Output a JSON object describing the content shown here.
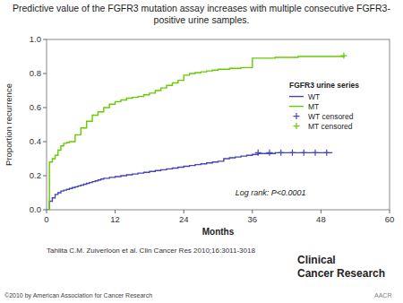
{
  "chart_data": {
    "type": "line",
    "title": "Predictive value of the FGFR3 mutation assay increases with multiple consecutive FGFR3-positive urine samples.",
    "x_label": "Months",
    "y_label": "Proportion recurrence",
    "xlim": [
      0,
      60
    ],
    "ylim": [
      0.0,
      1.0
    ],
    "xticks": [
      0,
      12,
      24,
      36,
      48,
      60
    ],
    "yticks": [
      {
        "value": 0.0,
        "label": "0.0"
      },
      0.2,
      0.4,
      0.6,
      0.8,
      {
        "value": 1.0,
        "label": "1.0"
      }
    ],
    "legend": "right",
    "legend_title": "FGFR3 urine series",
    "annotations": [
      "Log rank: P<0.0001",
      "Tahlita C.M. Zuiverloon et al. Clin Cancer Res 2010;16:3011-3018",
      "©2010 by American Association for Cancer Research",
      "Clinical",
      "Cancer Research",
      "AACR"
    ],
    "series": [
      {
        "name": "WT",
        "type": "step",
        "color": "#4444bb",
        "x": [
          0,
          0.5,
          1,
          1.5,
          2,
          2.5,
          3,
          3.5,
          4,
          4.5,
          5,
          5.5,
          6,
          6.5,
          7,
          7.5,
          8,
          8.5,
          9,
          9.5,
          10,
          11,
          12,
          13,
          14,
          15,
          16,
          17,
          18,
          19,
          20,
          21,
          22,
          23,
          24,
          25,
          26,
          27,
          28,
          29,
          30,
          31,
          32,
          33,
          34,
          35,
          36,
          37,
          38,
          40,
          42,
          44,
          46,
          48,
          50
        ],
        "values": [
          0.0,
          0.05,
          0.07,
          0.09,
          0.1,
          0.11,
          0.115,
          0.12,
          0.125,
          0.13,
          0.135,
          0.14,
          0.145,
          0.15,
          0.155,
          0.16,
          0.165,
          0.17,
          0.175,
          0.18,
          0.185,
          0.19,
          0.195,
          0.2,
          0.205,
          0.21,
          0.215,
          0.22,
          0.225,
          0.23,
          0.235,
          0.24,
          0.245,
          0.25,
          0.255,
          0.26,
          0.265,
          0.27,
          0.275,
          0.28,
          0.285,
          0.3,
          0.305,
          0.31,
          0.315,
          0.32,
          0.325,
          0.33,
          0.33,
          0.335,
          0.335,
          0.335,
          0.335,
          0.335,
          0.335
        ]
      },
      {
        "name": "MT",
        "type": "step",
        "color": "#66cc00",
        "x": [
          0,
          0.5,
          1,
          1.5,
          2,
          2.5,
          3,
          3.5,
          4,
          5,
          6,
          7,
          8,
          9,
          10,
          11,
          12,
          13,
          14,
          15,
          16,
          17,
          18,
          19,
          20,
          21,
          22,
          23,
          24,
          25,
          26,
          27,
          28,
          29,
          30,
          32,
          34,
          36,
          40,
          44,
          52
        ],
        "values": [
          0.0,
          0.28,
          0.3,
          0.32,
          0.35,
          0.375,
          0.39,
          0.395,
          0.4,
          0.44,
          0.48,
          0.52,
          0.555,
          0.575,
          0.6,
          0.62,
          0.635,
          0.645,
          0.655,
          0.66,
          0.665,
          0.675,
          0.685,
          0.7,
          0.715,
          0.73,
          0.745,
          0.76,
          0.79,
          0.8,
          0.805,
          0.81,
          0.815,
          0.82,
          0.825,
          0.83,
          0.835,
          0.89,
          0.895,
          0.9,
          0.905
        ]
      },
      {
        "name": "WT censored",
        "type": "scatter",
        "marker": "plus",
        "color": "#4444bb",
        "x": [
          37,
          39,
          41,
          43,
          45,
          47,
          49
        ],
        "values": [
          0.335,
          0.335,
          0.335,
          0.335,
          0.335,
          0.335,
          0.335
        ]
      },
      {
        "name": "MT censored",
        "type": "scatter",
        "marker": "plus",
        "color": "#66cc00",
        "x": [
          52
        ],
        "values": [
          0.905
        ]
      }
    ]
  }
}
